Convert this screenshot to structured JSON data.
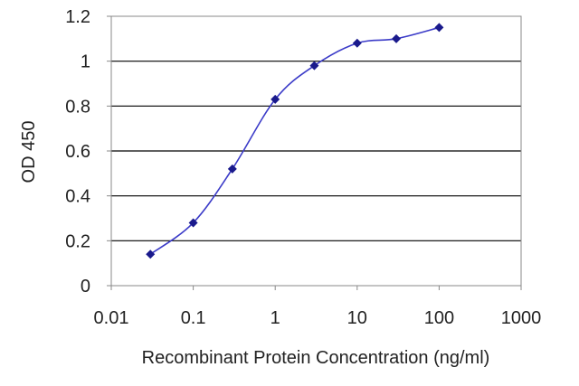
{
  "chart_data": {
    "type": "line",
    "title": "",
    "xlabel": "Recombinant Protein Concentration (ng/ml)",
    "ylabel": "OD 450",
    "xscale": "log",
    "xlim": [
      0.01,
      1000
    ],
    "ylim": [
      0,
      1.2
    ],
    "xticks": [
      "0.01",
      "0.1",
      "1",
      "10",
      "100",
      "1000"
    ],
    "yticks": [
      "0",
      "0.2",
      "0.4",
      "0.6",
      "0.8",
      "1",
      "1.2"
    ],
    "grid": "horizontal",
    "legend": "none",
    "series": [
      {
        "x": [
          0.03,
          0.1,
          0.3,
          1,
          3,
          10,
          30,
          100
        ],
        "y": [
          0.14,
          0.28,
          0.52,
          0.83,
          0.98,
          1.08,
          1.1,
          1.15
        ]
      }
    ],
    "colors": {
      "line": "#3b3bc8",
      "marker": "#1a1a8c",
      "grid": "#000000",
      "frame": "#888888",
      "plot_bg": "#ffffff"
    }
  }
}
